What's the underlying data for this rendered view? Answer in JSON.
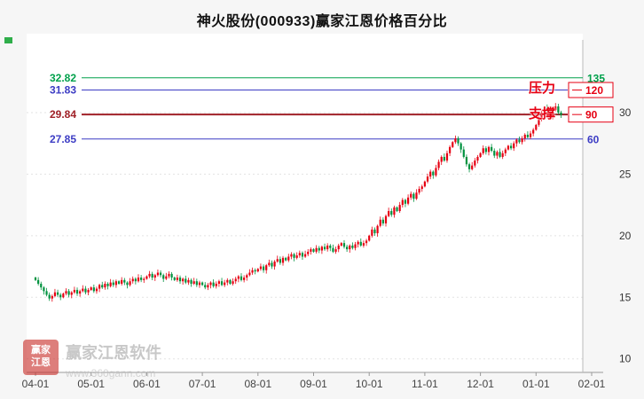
{
  "title": "神火股份(000933)赢家江恩价格百分比",
  "annotations": {
    "pressure": "压力",
    "support": "支撑"
  },
  "watermark": {
    "brand": "赢家江恩软件",
    "url": "www.360gann.com",
    "seal_line1": "赢家",
    "seal_line2": "江恩"
  },
  "chart_data": {
    "type": "candlestick",
    "title": "神火股份(000933)赢家江恩价格百分比",
    "xlabel": "",
    "ylabel": "",
    "x_ticks": [
      "04-01",
      "05-01",
      "06-01",
      "07-01",
      "08-01",
      "09-01",
      "10-01",
      "11-01",
      "12-01",
      "01-01",
      "02-01"
    ],
    "y_ticks": [
      10,
      15,
      20,
      25,
      30
    ],
    "ylim": [
      8.9,
      35.9
    ],
    "grid": true,
    "colors": {
      "up": "#e60012",
      "down": "#00923f"
    },
    "levels": [
      {
        "price": 32.82,
        "label": "32.82",
        "pct_label": "135",
        "color": "#00A14B",
        "pct_color": "#00A14B",
        "boxed": false,
        "width": 1
      },
      {
        "price": 31.83,
        "label": "31.83",
        "pct_label": "120",
        "color": "#3C3CC4",
        "pct_color": "#E60012",
        "boxed": true,
        "width": 1
      },
      {
        "price": 29.84,
        "label": "29.84",
        "pct_label": "90",
        "color": "#A02128",
        "pct_color": "#E60012",
        "boxed": true,
        "width": 2
      },
      {
        "price": 27.85,
        "label": "27.85",
        "pct_label": "60",
        "color": "#3C3CC4",
        "pct_color": "#3C3CC4",
        "boxed": false,
        "width": 1
      }
    ],
    "closes": [
      16.4,
      16.1,
      15.8,
      15.5,
      15.2,
      14.9,
      15.1,
      15.4,
      15.2,
      15.0,
      15.3,
      15.5,
      15.2,
      15.4,
      15.6,
      15.3,
      15.5,
      15.7,
      15.4,
      15.6,
      15.8,
      15.5,
      15.7,
      16.0,
      15.8,
      16.1,
      15.9,
      16.2,
      16.0,
      16.3,
      16.1,
      16.4,
      16.2,
      16.0,
      16.3,
      16.5,
      16.3,
      16.6,
      16.4,
      16.5,
      16.7,
      16.9,
      16.6,
      16.8,
      17.0,
      16.8,
      16.5,
      16.7,
      16.9,
      16.6,
      16.4,
      16.6,
      16.3,
      16.5,
      16.2,
      16.4,
      16.1,
      16.3,
      16.0,
      16.2,
      16.0,
      15.8,
      16.0,
      16.2,
      15.9,
      16.1,
      16.3,
      16.0,
      16.2,
      16.4,
      16.1,
      16.3,
      16.5,
      16.7,
      16.4,
      16.6,
      16.8,
      17.0,
      17.2,
      17.1,
      17.3,
      17.5,
      17.2,
      17.6,
      17.8,
      17.5,
      17.9,
      18.1,
      17.8,
      18.2,
      18.0,
      18.3,
      18.5,
      18.2,
      18.4,
      18.6,
      18.3,
      18.5,
      18.7,
      18.9,
      18.7,
      19.0,
      18.8,
      19.1,
      18.9,
      19.2,
      19.0,
      18.7,
      18.9,
      19.2,
      19.4,
      19.1,
      18.9,
      19.2,
      19.0,
      19.3,
      19.5,
      19.2,
      19.4,
      19.6,
      20.0,
      20.5,
      20.2,
      20.8,
      21.3,
      21.0,
      21.6,
      22.0,
      21.7,
      22.3,
      22.0,
      22.5,
      22.9,
      22.6,
      23.1,
      23.4,
      23.0,
      23.5,
      23.8,
      24.0,
      24.4,
      24.8,
      25.2,
      24.9,
      25.5,
      26.0,
      26.4,
      26.1,
      26.7,
      27.2,
      27.6,
      27.9,
      27.5,
      27.0,
      26.4,
      25.8,
      25.4,
      25.7,
      26.1,
      26.4,
      26.7,
      27.1,
      26.8,
      27.2,
      26.9,
      26.5,
      26.8,
      26.4,
      26.7,
      27.0,
      27.3,
      27.1,
      27.5,
      27.8,
      27.6,
      27.9,
      28.2,
      28.0,
      28.3,
      28.6,
      29.0,
      29.5,
      30.0,
      30.4,
      30.1,
      29.7,
      30.2,
      30.5,
      30.0,
      29.8
    ]
  }
}
